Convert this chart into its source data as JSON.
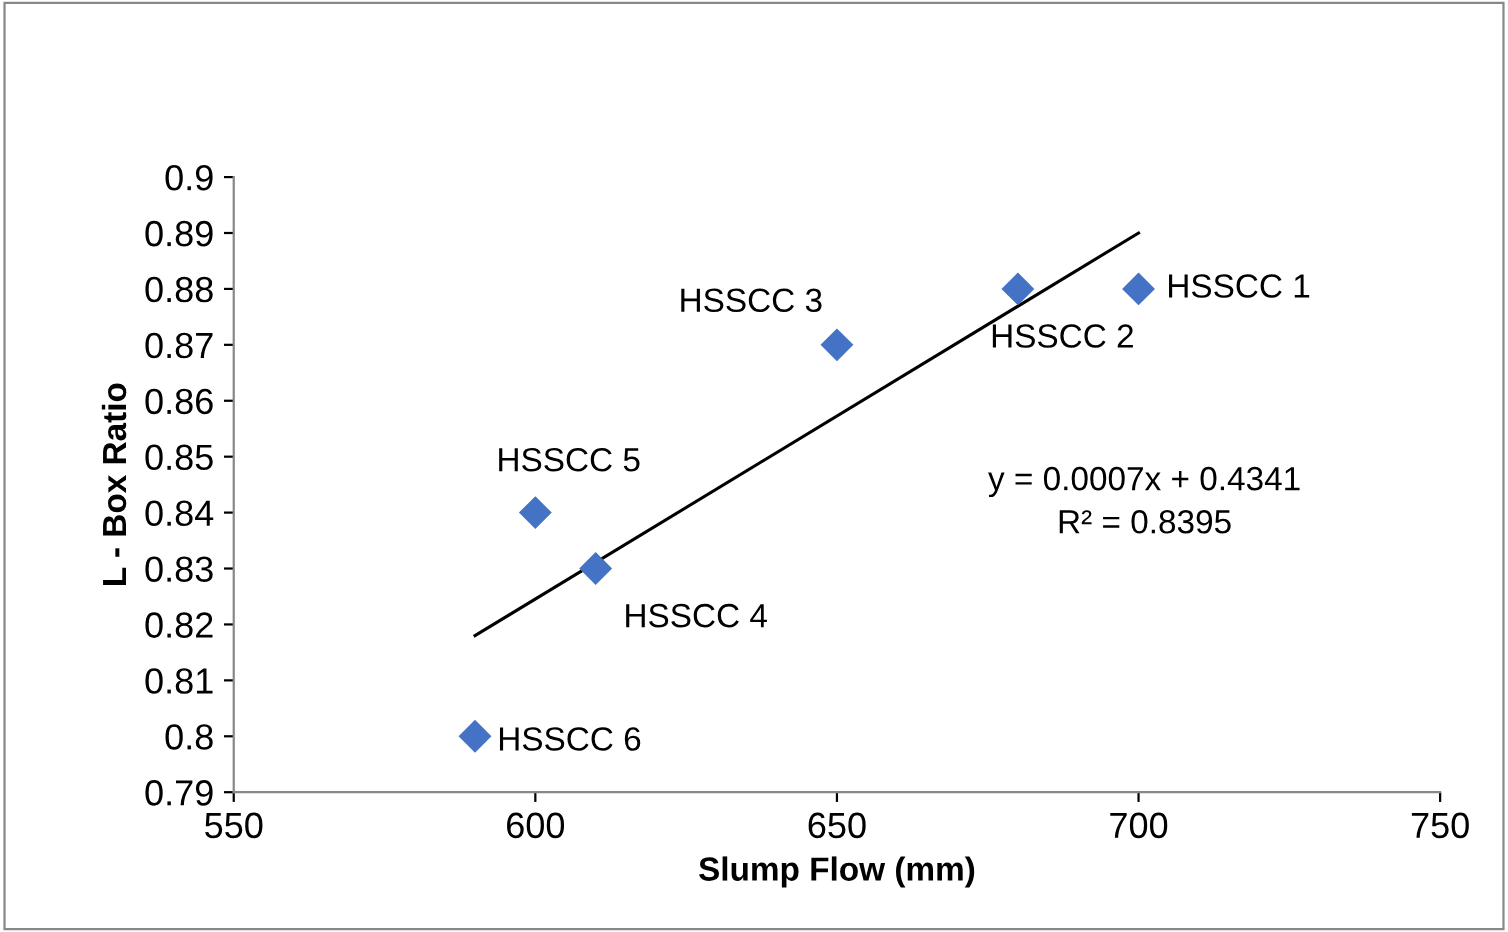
{
  "chart_data": {
    "type": "scatter",
    "xlabel": "Slump Flow (mm)",
    "ylabel": "L - Box Ratio",
    "x": [
      700,
      680,
      650,
      610,
      600,
      590
    ],
    "values": [
      0.88,
      0.88,
      0.87,
      0.83,
      0.84,
      0.8
    ],
    "color": "#4472c4",
    "marker": "diamond",
    "series": [
      {
        "type": "line",
        "x": [
          590,
          700
        ],
        "values": [
          0.818,
          0.89
        ],
        "color": "#000000",
        "line_style": "solid",
        "marker": "none"
      }
    ],
    "xlim": [
      550,
      750
    ],
    "xticks": [
      550,
      600,
      650,
      700,
      750
    ],
    "ylim": [
      0.79,
      0.9
    ],
    "yticks": [
      0.79,
      0.8,
      0.81,
      0.82,
      0.83,
      0.84,
      0.85,
      0.86,
      0.87,
      0.88,
      0.89,
      0.9
    ],
    "grid": false,
    "legend": false,
    "annotations": [
      {
        "text": "HSSCC 1",
        "x": 700,
        "y": 0.88
      },
      {
        "text": "HSSCC 2",
        "x": 680,
        "y": 0.88
      },
      {
        "text": "HSSCC 3",
        "x": 650,
        "y": 0.87
      },
      {
        "text": "HSSCC 4",
        "x": 610,
        "y": 0.83
      },
      {
        "text": "HSSCC 5",
        "x": 600,
        "y": 0.84
      },
      {
        "text": "HSSCC 6",
        "x": 590,
        "y": 0.8
      },
      "y = 0.0007x + 0.4341\nR² = 0.8395"
    ]
  }
}
